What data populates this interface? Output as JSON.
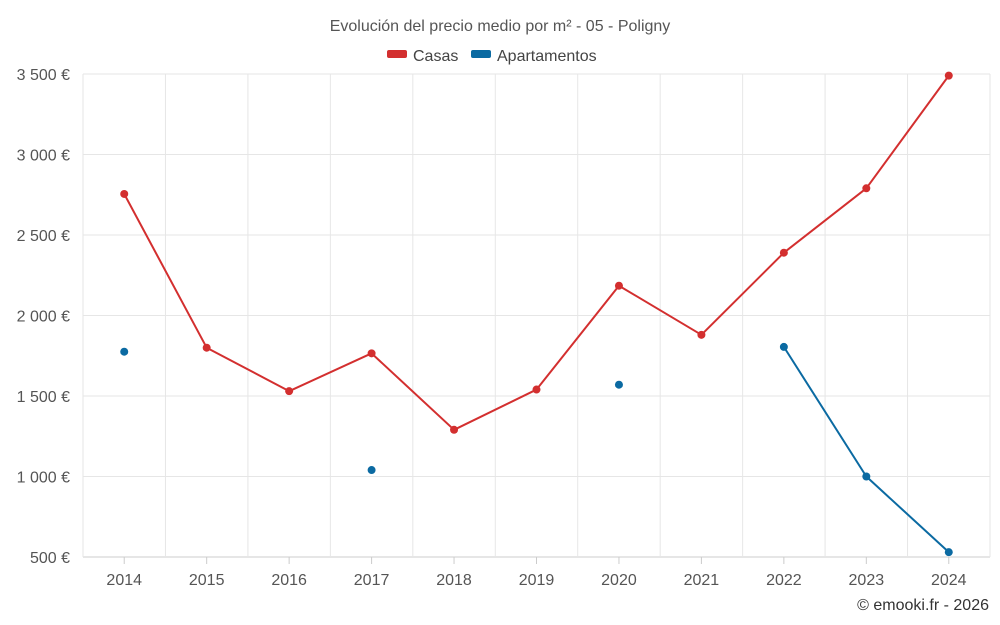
{
  "chart_data": {
    "type": "line",
    "title": "Evolución del precio medio por m² - 05 - Poligny",
    "categories": [
      "2014",
      "2015",
      "2016",
      "2017",
      "2018",
      "2019",
      "2020",
      "2021",
      "2022",
      "2023",
      "2024"
    ],
    "series": [
      {
        "name": "Casas",
        "color": "#d32f2f",
        "values": [
          2755,
          1800,
          1530,
          1765,
          1290,
          1540,
          2185,
          1880,
          2390,
          2790,
          3490
        ]
      },
      {
        "name": "Apartamentos",
        "color": "#0b6aa2",
        "values": [
          1775,
          null,
          null,
          1040,
          null,
          null,
          1570,
          null,
          1805,
          1000,
          530
        ]
      }
    ],
    "ylim": [
      500,
      3500
    ],
    "yticks": [
      500,
      1000,
      1500,
      2000,
      2500,
      3000,
      3500
    ],
    "ytick_labels": [
      "500 €",
      "1 000 €",
      "1 500 €",
      "2 000 €",
      "2 500 €",
      "3 000 €",
      "3 500 €"
    ],
    "xlabel": "",
    "ylabel": "",
    "grid": true,
    "legend_position": "top-center"
  },
  "credit": "© emooki.fr - 2026"
}
